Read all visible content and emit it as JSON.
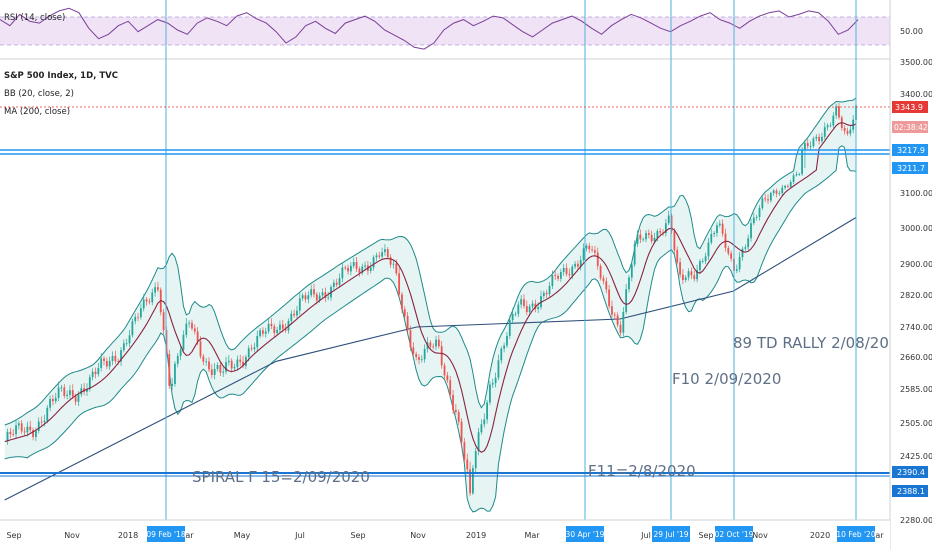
{
  "chart_data": {
    "type": "line",
    "title": "S&P 500 Index, 1D, TVC",
    "indicators": [
      "BB (20, close, 2)",
      "MA (200, close)"
    ],
    "rsi": {
      "label": "RSI (14, close)",
      "tick": "50.00",
      "band": [
        30,
        70
      ],
      "values": [
        62,
        55,
        68,
        60,
        58,
        66,
        72,
        75,
        70,
        52,
        40,
        45,
        55,
        60,
        48,
        55,
        62,
        58,
        50,
        45,
        58,
        64,
        60,
        55,
        66,
        70,
        63,
        58,
        48,
        35,
        42,
        55,
        60,
        52,
        46,
        58,
        62,
        66,
        60,
        50,
        44,
        38,
        30,
        28,
        35,
        50,
        58,
        62,
        55,
        60,
        66,
        64,
        56,
        48,
        42,
        50,
        58,
        62,
        66,
        60,
        52,
        45,
        55,
        62,
        68,
        64,
        58,
        52,
        48,
        55,
        60,
        66,
        70,
        62,
        58,
        52,
        60,
        66,
        70,
        72,
        65,
        68,
        72,
        70,
        60,
        45,
        50,
        62
      ]
    },
    "x_labels": [
      "Sep",
      "Nov",
      "2018",
      "Mar",
      "May",
      "Jul",
      "Sep",
      "Nov",
      "2019",
      "Mar",
      "May",
      "Jul",
      "Sep",
      "Nov",
      "2020",
      "Mar"
    ],
    "highlighted_dates": [
      "09 Feb '18",
      "30 Apr '19",
      "29 Jul '19",
      "02 Oct '19",
      "10 Feb '20"
    ],
    "y_ticks": [
      3500,
      3400,
      3343.9,
      3217.9,
      3211.7,
      3100,
      3000,
      2900,
      2820,
      2740,
      2660,
      2585,
      2505,
      2425,
      2390.4,
      2388.1,
      2280
    ],
    "price_badge_time": "02:38:42",
    "ylim": [
      2280,
      3500
    ],
    "price": {
      "x": [
        "2017-08-15",
        "2017-09-15",
        "2017-10-15",
        "2017-11-15",
        "2017-12-15",
        "2018-01-10",
        "2018-01-26",
        "2018-02-08",
        "2018-03-01",
        "2018-03-20",
        "2018-04-02",
        "2018-05-01",
        "2018-06-01",
        "2018-07-01",
        "2018-08-01",
        "2018-09-20",
        "2018-10-05",
        "2018-10-29",
        "2018-11-20",
        "2018-12-10",
        "2018-12-24",
        "2019-01-15",
        "2019-02-15",
        "2019-03-15",
        "2019-04-30",
        "2019-05-15",
        "2019-06-03",
        "2019-06-20",
        "2019-07-26",
        "2019-08-05",
        "2019-08-20",
        "2019-09-15",
        "2019-10-02",
        "2019-10-20",
        "2019-11-15",
        "2019-12-15",
        "2020-01-10",
        "2020-01-20",
        "2020-01-31",
        "2020-02-10"
      ],
      "y": [
        2460,
        2500,
        2570,
        2600,
        2680,
        2780,
        2860,
        2580,
        2760,
        2640,
        2610,
        2680,
        2740,
        2800,
        2850,
        2930,
        2880,
        2650,
        2690,
        2540,
        2350,
        2600,
        2790,
        2820,
        2950,
        2850,
        2745,
        2950,
        3025,
        2845,
        2880,
        3000,
        2890,
        3000,
        3110,
        3200,
        3300,
        3330,
        3230,
        3343.9
      ]
    },
    "ma200": {
      "x": [
        "2017-08-15",
        "2018-06-01",
        "2018-10-29",
        "2019-06-03",
        "2019-10-02",
        "2020-02-10"
      ],
      "y": [
        2360,
        2650,
        2740,
        2760,
        2830,
        3030
      ]
    },
    "horizontal_levels": [
      3343.9,
      3217.9,
      3211.7,
      2390.4,
      2388.1
    ],
    "annotations": [
      "89 TD RALLY 2/08/2020",
      "F10 2/09/2020",
      "F11=2/8/2020",
      "SPIRAL Γ 15=2/09/2020"
    ],
    "colors": {
      "candle_up": "#26a69a",
      "candle_down": "#ef5350",
      "bb_band": "#1f8a8a",
      "bb_fill": "#e0f2f1",
      "bb_basis": "#8b2340",
      "ma": "#2d4f7a",
      "rsi": "#7b3f99",
      "level": "#2196f3",
      "price_line": "#e53935"
    }
  }
}
